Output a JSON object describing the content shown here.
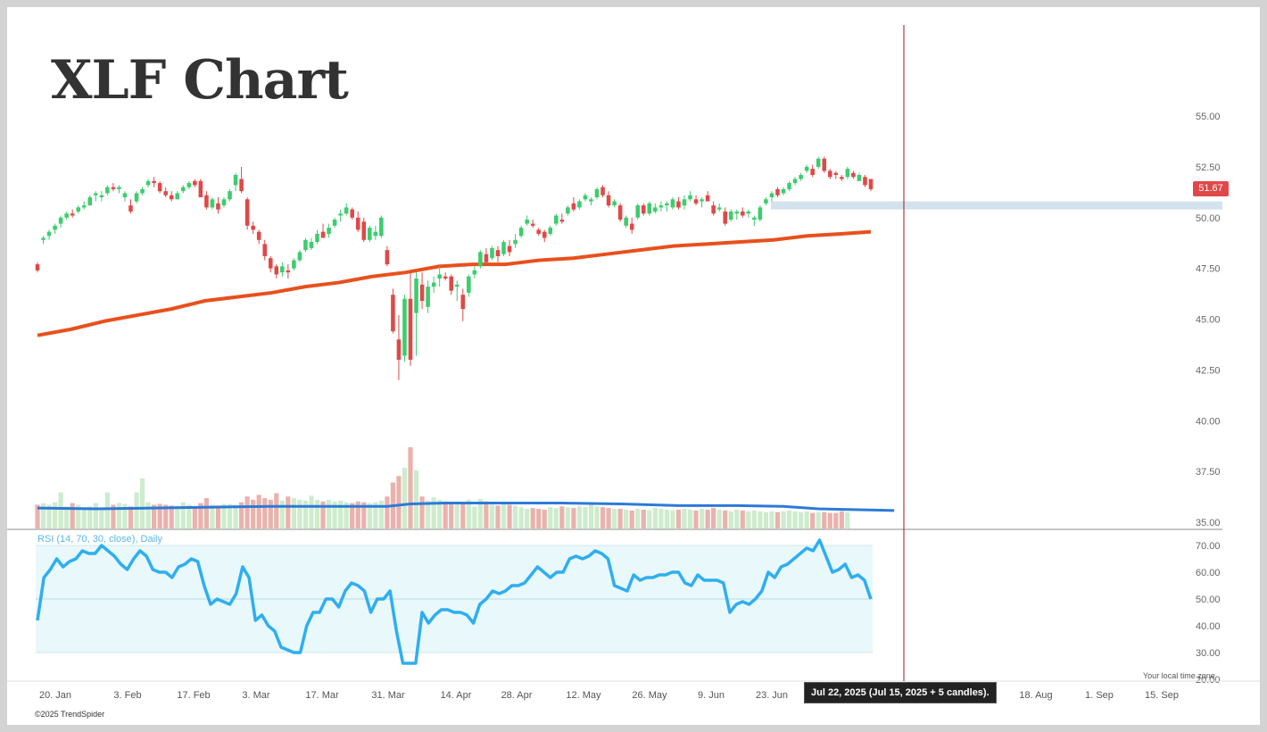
{
  "title": "XLF Chart",
  "copyright": "©2025 TrendSpider",
  "timezone_note": "Your local time zone",
  "tooltip": "Jul 22, 2025 (Jul 15, 2025 + 5 candles).",
  "last_price_label": "51.67",
  "rsi_label": "RSI (14, 70, 30, close), Daily",
  "colors": {
    "up": "#3dcc6e",
    "down": "#e04848",
    "sma": "#e8501c",
    "volume_ma": "#2c7ad8",
    "rsi": "#2eaef0",
    "rsi_band": "#e9f8fa",
    "support_zone": "#d4e2ee",
    "cursor": "#9a1a1a"
  },
  "chart_data": [
    {
      "type": "candlestick",
      "ticker": "XLF",
      "x_ticks": [
        "20. Jan",
        "3. Feb",
        "17. Feb",
        "3. Mar",
        "17. Mar",
        "31. Mar",
        "14. Apr",
        "28. Apr",
        "12. May",
        "26. May",
        "9. Jun",
        "23. Jun",
        "18. Aug",
        "1. Sep",
        "15. Sep"
      ],
      "y_ticks": [
        55.0,
        52.5,
        50.0,
        47.5,
        45.0,
        42.5,
        40.0,
        37.5,
        35.0
      ],
      "ylim": [
        35.0,
        55.0
      ],
      "candles": [
        [
          47.7,
          47.8,
          47.3,
          47.4
        ],
        [
          48.9,
          49.1,
          48.7,
          49.0
        ],
        [
          49.1,
          49.4,
          48.9,
          49.3
        ],
        [
          49.4,
          49.7,
          49.2,
          49.6
        ],
        [
          49.7,
          50.1,
          49.5,
          50.0
        ],
        [
          50.0,
          50.3,
          49.9,
          50.2
        ],
        [
          50.2,
          50.4,
          50.0,
          50.1
        ],
        [
          50.3,
          50.6,
          50.2,
          50.5
        ],
        [
          50.5,
          50.8,
          50.4,
          50.6
        ],
        [
          50.6,
          51.1,
          50.6,
          51.0
        ],
        [
          51.1,
          51.3,
          50.8,
          51.2
        ],
        [
          51.0,
          51.3,
          50.8,
          51.1
        ],
        [
          51.2,
          51.6,
          51.1,
          51.5
        ],
        [
          51.5,
          51.7,
          51.3,
          51.4
        ],
        [
          51.4,
          51.6,
          51.2,
          51.5
        ],
        [
          51.0,
          51.3,
          50.8,
          51.2
        ],
        [
          50.6,
          50.9,
          50.2,
          50.3
        ],
        [
          50.8,
          51.3,
          50.7,
          51.2
        ],
        [
          51.2,
          51.5,
          51.1,
          51.4
        ],
        [
          51.6,
          51.9,
          51.5,
          51.8
        ],
        [
          51.8,
          52.0,
          51.5,
          51.7
        ],
        [
          51.7,
          51.8,
          51.2,
          51.3
        ],
        [
          51.3,
          51.5,
          51.0,
          51.1
        ],
        [
          51.1,
          51.3,
          50.8,
          50.9
        ],
        [
          50.9,
          51.3,
          50.9,
          51.2
        ],
        [
          51.3,
          51.6,
          51.2,
          51.5
        ],
        [
          51.5,
          51.8,
          51.4,
          51.7
        ],
        [
          51.8,
          51.9,
          51.5,
          51.6
        ],
        [
          51.8,
          51.9,
          51.0,
          51.0
        ],
        [
          51.1,
          51.3,
          50.4,
          50.5
        ],
        [
          50.5,
          51.0,
          50.4,
          50.9
        ],
        [
          50.7,
          51.0,
          50.2,
          50.4
        ],
        [
          50.6,
          51.0,
          50.5,
          50.9
        ],
        [
          50.9,
          51.4,
          50.8,
          51.3
        ],
        [
          51.6,
          52.2,
          51.3,
          52.1
        ],
        [
          51.9,
          52.5,
          51.2,
          51.3
        ],
        [
          50.9,
          51.0,
          49.4,
          49.6
        ],
        [
          49.6,
          49.8,
          49.2,
          49.4
        ],
        [
          49.3,
          49.4,
          48.7,
          48.9
        ],
        [
          48.7,
          48.9,
          47.9,
          48.1
        ],
        [
          48.0,
          48.1,
          47.3,
          47.5
        ],
        [
          47.6,
          47.7,
          47.0,
          47.2
        ],
        [
          47.3,
          47.8,
          47.1,
          47.6
        ],
        [
          47.4,
          47.7,
          47.0,
          47.3
        ],
        [
          47.5,
          48.0,
          47.4,
          47.9
        ],
        [
          47.9,
          48.4,
          47.8,
          48.3
        ],
        [
          48.4,
          49.0,
          48.3,
          48.9
        ],
        [
          48.5,
          49.0,
          48.4,
          48.8
        ],
        [
          48.8,
          49.4,
          48.7,
          49.2
        ],
        [
          49.3,
          49.7,
          49.0,
          49.0
        ],
        [
          49.2,
          49.7,
          49.0,
          49.5
        ],
        [
          49.6,
          50.0,
          49.5,
          49.9
        ],
        [
          50.1,
          50.4,
          49.8,
          50.2
        ],
        [
          50.2,
          50.7,
          50.1,
          50.5
        ],
        [
          50.4,
          50.5,
          49.9,
          50.0
        ],
        [
          50.0,
          50.3,
          49.3,
          49.4
        ],
        [
          49.8,
          50.0,
          48.8,
          48.9
        ],
        [
          48.9,
          49.6,
          48.8,
          49.5
        ],
        [
          49.1,
          49.6,
          48.9,
          49.3
        ],
        [
          49.1,
          50.1,
          49.0,
          50.0
        ],
        [
          48.4,
          48.6,
          47.6,
          47.7
        ],
        [
          46.2,
          46.5,
          44.3,
          44.4
        ],
        [
          44.0,
          45.2,
          42.0,
          43.0
        ],
        [
          43.2,
          46.2,
          42.9,
          46.0
        ],
        [
          46.0,
          47.4,
          42.7,
          43.0
        ],
        [
          45.3,
          47.3,
          43.2,
          47.0
        ],
        [
          46.7,
          47.3,
          45.5,
          45.9
        ],
        [
          45.6,
          46.9,
          45.3,
          46.6
        ],
        [
          46.6,
          47.1,
          46.3,
          46.8
        ],
        [
          47.0,
          47.6,
          46.6,
          47.2
        ],
        [
          47.1,
          47.3,
          46.9,
          47.0
        ],
        [
          47.1,
          47.2,
          46.2,
          46.4
        ],
        [
          46.6,
          46.9,
          45.9,
          46.7
        ],
        [
          46.2,
          46.5,
          44.9,
          45.5
        ],
        [
          46.3,
          47.2,
          46.1,
          47.1
        ],
        [
          47.2,
          47.6,
          47.0,
          47.4
        ],
        [
          47.6,
          48.4,
          47.5,
          48.3
        ],
        [
          48.2,
          48.5,
          47.8,
          47.8
        ],
        [
          48.0,
          48.6,
          47.9,
          48.5
        ],
        [
          48.4,
          48.6,
          47.8,
          48.1
        ],
        [
          48.2,
          48.9,
          48.1,
          48.8
        ],
        [
          48.6,
          48.9,
          48.1,
          48.3
        ],
        [
          48.7,
          49.2,
          48.5,
          48.9
        ],
        [
          49.1,
          49.6,
          49.0,
          49.5
        ],
        [
          49.7,
          50.1,
          49.6,
          49.9
        ],
        [
          49.7,
          49.9,
          49.5,
          49.6
        ],
        [
          49.4,
          49.5,
          49.1,
          49.2
        ],
        [
          49.3,
          49.4,
          48.8,
          49.0
        ],
        [
          49.2,
          49.6,
          49.1,
          49.5
        ],
        [
          49.7,
          50.2,
          49.6,
          50.1
        ],
        [
          49.9,
          50.2,
          49.7,
          49.8
        ],
        [
          50.2,
          50.6,
          50.1,
          50.5
        ],
        [
          50.7,
          51.0,
          50.3,
          50.4
        ],
        [
          50.5,
          50.9,
          50.4,
          50.8
        ],
        [
          50.9,
          51.2,
          50.8,
          51.1
        ],
        [
          50.8,
          51.0,
          50.6,
          50.9
        ],
        [
          51.0,
          51.5,
          50.9,
          51.4
        ],
        [
          51.5,
          51.6,
          51.0,
          51.1
        ],
        [
          51.1,
          51.3,
          50.5,
          50.6
        ],
        [
          50.6,
          50.9,
          50.5,
          50.8
        ],
        [
          50.6,
          50.7,
          49.8,
          49.9
        ],
        [
          49.6,
          50.1,
          49.5,
          50.0
        ],
        [
          49.7,
          50.0,
          49.2,
          49.4
        ],
        [
          50.0,
          50.7,
          49.9,
          50.6
        ],
        [
          50.6,
          50.7,
          50.1,
          50.2
        ],
        [
          50.2,
          50.8,
          50.1,
          50.7
        ],
        [
          50.3,
          50.7,
          50.2,
          50.5
        ],
        [
          50.5,
          50.8,
          50.3,
          50.6
        ],
        [
          50.6,
          50.8,
          50.3,
          50.7
        ],
        [
          50.5,
          51.0,
          50.4,
          50.9
        ],
        [
          50.8,
          51.0,
          50.4,
          50.5
        ],
        [
          50.6,
          51.1,
          50.4,
          50.9
        ],
        [
          50.9,
          51.3,
          50.8,
          51.1
        ],
        [
          50.9,
          51.1,
          50.6,
          50.7
        ],
        [
          50.8,
          51.0,
          50.5,
          50.9
        ],
        [
          51.1,
          51.3,
          50.8,
          50.8
        ],
        [
          50.6,
          50.8,
          50.1,
          50.2
        ],
        [
          50.4,
          50.7,
          50.3,
          50.5
        ],
        [
          50.3,
          50.5,
          49.6,
          49.7
        ],
        [
          49.9,
          50.4,
          49.8,
          50.3
        ],
        [
          50.2,
          50.4,
          49.9,
          50.3
        ],
        [
          50.3,
          50.5,
          50.0,
          50.1
        ],
        [
          50.2,
          50.4,
          50.0,
          50.3
        ],
        [
          49.9,
          50.1,
          49.6,
          50.0
        ],
        [
          49.9,
          50.6,
          49.8,
          50.5
        ],
        [
          50.7,
          51.0,
          50.6,
          50.9
        ],
        [
          51.0,
          51.3,
          50.8,
          51.2
        ],
        [
          51.4,
          51.5,
          51.0,
          51.1
        ],
        [
          51.2,
          51.5,
          51.1,
          51.4
        ],
        [
          51.4,
          51.8,
          51.3,
          51.7
        ],
        [
          51.7,
          52.0,
          51.6,
          51.9
        ],
        [
          51.9,
          52.2,
          51.8,
          52.1
        ],
        [
          52.3,
          52.6,
          52.2,
          52.5
        ],
        [
          52.4,
          52.6,
          52.0,
          52.1
        ],
        [
          52.5,
          53.0,
          52.4,
          52.9
        ],
        [
          52.9,
          53.0,
          52.2,
          52.3
        ],
        [
          52.3,
          52.4,
          51.9,
          52.0
        ],
        [
          52.2,
          52.3,
          51.9,
          52.1
        ],
        [
          52.0,
          52.1,
          51.8,
          51.9
        ],
        [
          52.0,
          52.5,
          51.9,
          52.4
        ],
        [
          52.2,
          52.3,
          51.9,
          52.0
        ],
        [
          51.8,
          52.2,
          51.8,
          52.1
        ],
        [
          52.0,
          52.1,
          51.5,
          51.6
        ],
        [
          51.9,
          51.9,
          51.3,
          51.4
        ]
      ],
      "sma": [
        [
          0,
          44.2
        ],
        [
          10,
          44.5
        ],
        [
          20,
          44.9
        ],
        [
          30,
          45.2
        ],
        [
          40,
          45.5
        ],
        [
          50,
          45.9
        ],
        [
          60,
          46.1
        ],
        [
          70,
          46.3
        ],
        [
          80,
          46.6
        ],
        [
          90,
          46.8
        ],
        [
          100,
          47.1
        ],
        [
          110,
          47.3
        ],
        [
          120,
          47.6
        ],
        [
          130,
          47.7
        ],
        [
          140,
          47.7
        ],
        [
          150,
          47.9
        ],
        [
          160,
          48.0
        ],
        [
          170,
          48.2
        ],
        [
          180,
          48.4
        ],
        [
          190,
          48.6
        ],
        [
          200,
          48.7
        ],
        [
          210,
          48.8
        ],
        [
          220,
          48.9
        ],
        [
          230,
          49.1
        ],
        [
          240,
          49.2
        ],
        [
          249,
          49.3
        ]
      ],
      "support_zone": [
        50.4,
        50.8
      ],
      "last_price": 51.67
    },
    {
      "type": "bar",
      "name": "Volume",
      "values": [
        0.3,
        0.32,
        0.3,
        0.33,
        0.45,
        0.28,
        0.32,
        0.3,
        0.27,
        0.28,
        0.32,
        0.26,
        0.45,
        0.3,
        0.32,
        0.31,
        0.28,
        0.45,
        0.62,
        0.33,
        0.3,
        0.31,
        0.3,
        0.29,
        0.29,
        0.33,
        0.3,
        0.28,
        0.32,
        0.38,
        0.3,
        0.29,
        0.31,
        0.31,
        0.3,
        0.33,
        0.4,
        0.36,
        0.42,
        0.38,
        0.36,
        0.44,
        0.35,
        0.4,
        0.38,
        0.36,
        0.35,
        0.41,
        0.36,
        0.34,
        0.36,
        0.34,
        0.35,
        0.33,
        0.32,
        0.34,
        0.33,
        0.32,
        0.33,
        0.35,
        0.4,
        0.57,
        0.65,
        0.75,
        1.0,
        0.72,
        0.4,
        0.35,
        0.39,
        0.36,
        0.34,
        0.33,
        0.34,
        0.31,
        0.36,
        0.28,
        0.37,
        0.34,
        0.3,
        0.29,
        0.31,
        0.3,
        0.29,
        0.27,
        0.25,
        0.26,
        0.25,
        0.24,
        0.27,
        0.26,
        0.28,
        0.27,
        0.26,
        0.28,
        0.27,
        0.31,
        0.28,
        0.27,
        0.26,
        0.25,
        0.25,
        0.24,
        0.23,
        0.25,
        0.24,
        0.23,
        0.26,
        0.25,
        0.24,
        0.23,
        0.24,
        0.25,
        0.24,
        0.23,
        0.25,
        0.24,
        0.26,
        0.24,
        0.23,
        0.22,
        0.24,
        0.23,
        0.22,
        0.23,
        0.22,
        0.21,
        0.22,
        0.21,
        0.22,
        0.23,
        0.22,
        0.21,
        0.22,
        0.2,
        0.21,
        0.21,
        0.2,
        0.2,
        0.22,
        0.21
      ],
      "ma": [
        [
          0,
          0.26
        ],
        [
          10,
          0.25
        ],
        [
          20,
          0.26
        ],
        [
          30,
          0.27
        ],
        [
          40,
          0.28
        ],
        [
          50,
          0.28
        ],
        [
          60,
          0.28
        ],
        [
          64,
          0.31
        ],
        [
          70,
          0.32
        ],
        [
          80,
          0.32
        ],
        [
          90,
          0.32
        ],
        [
          100,
          0.31
        ],
        [
          110,
          0.29
        ],
        [
          120,
          0.29
        ],
        [
          128,
          0.28
        ],
        [
          134,
          0.25
        ],
        [
          140,
          0.24
        ],
        [
          147,
          0.23
        ]
      ]
    },
    {
      "type": "line",
      "name": "RSI (14, 70, 30, close), Daily",
      "y_ticks": [
        70.0,
        60.0,
        50.0,
        40.0,
        30.0,
        20.0
      ],
      "ylim": [
        20,
        75
      ],
      "bands": [
        30,
        70
      ],
      "midline": 50,
      "values": [
        42,
        58,
        61,
        65,
        62,
        64,
        65,
        68,
        67,
        67,
        70,
        68,
        66,
        63,
        61,
        65,
        68,
        66,
        61,
        60,
        60,
        58,
        62,
        63,
        65,
        64,
        55,
        48,
        50,
        49,
        48,
        52,
        62,
        58,
        42,
        44,
        40,
        38,
        32,
        31,
        30,
        30,
        40,
        45,
        45,
        50,
        50,
        47,
        53,
        56,
        55,
        53,
        45,
        50,
        50,
        53,
        38,
        26,
        26,
        26,
        45,
        41,
        44,
        46,
        46,
        45,
        45,
        44,
        41,
        48,
        50,
        53,
        52,
        53,
        55,
        55,
        56,
        59,
        62,
        60,
        58,
        60,
        60,
        65,
        66,
        65,
        66,
        68,
        67,
        65,
        55,
        54,
        53,
        59,
        57,
        58,
        58,
        59,
        59,
        60,
        60,
        56,
        55,
        59,
        57,
        57,
        57,
        56,
        45,
        48,
        49,
        48,
        50,
        53,
        60,
        58,
        62,
        63,
        65,
        67,
        69,
        68,
        72,
        66,
        60,
        61,
        63,
        58,
        59,
        57,
        50
      ]
    }
  ]
}
